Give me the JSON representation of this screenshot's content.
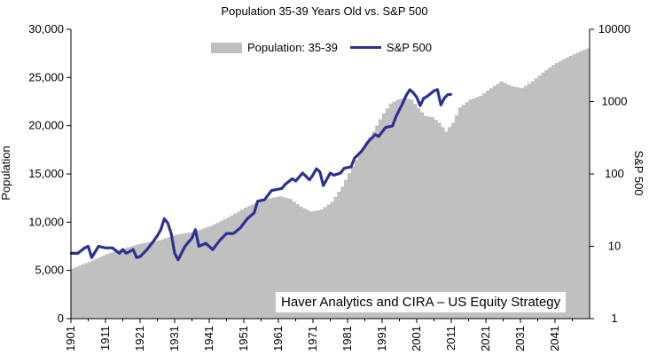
{
  "chart_data": {
    "type": "area",
    "title": "Population 35-39 Years Old vs. S&P 500",
    "ylabel": "Population",
    "y2label": "S&P 500",
    "ylim": [
      0,
      30000
    ],
    "y2lim": [
      1,
      10000
    ],
    "y2scale": "log",
    "xlim": [
      1901,
      2051
    ],
    "x_ticks": [
      1901,
      1911,
      1921,
      1931,
      1941,
      1951,
      1961,
      1971,
      1981,
      1991,
      2001,
      2011,
      2021,
      2031,
      2041
    ],
    "y_ticks": [
      "0",
      "5,000",
      "10,000",
      "15,000",
      "20,000",
      "25,000",
      "30,000"
    ],
    "y2_ticks": [
      "1",
      "10",
      "100",
      "1000",
      "10000"
    ],
    "legend_placement": "top",
    "grid": false,
    "annotation": "Haver Analytics and CIRA – US Equity Strategy",
    "colors": {
      "population": "#c0c0c0",
      "sp500": "#2e3192"
    },
    "series": [
      {
        "name": "Population: 35-39",
        "kind": "area",
        "axis": "left",
        "x": [
          1901,
          1906,
          1911,
          1916,
          1921,
          1926,
          1931,
          1936,
          1941,
          1946,
          1951,
          1956,
          1961,
          1964,
          1967,
          1970,
          1973,
          1976,
          1979,
          1982,
          1985,
          1988,
          1991,
          1993,
          1995,
          1997,
          1999,
          2001,
          2003,
          2005,
          2007,
          2009,
          2011,
          2013,
          2016,
          2019,
          2022,
          2025,
          2028,
          2031,
          2034,
          2037,
          2040,
          2043,
          2046,
          2049,
          2050
        ],
        "values": [
          5200,
          5900,
          6700,
          7300,
          7800,
          8100,
          8700,
          9000,
          9600,
          10500,
          11500,
          12300,
          12700,
          12400,
          11600,
          11100,
          11300,
          12100,
          13700,
          15800,
          17700,
          19400,
          21300,
          22300,
          22700,
          22900,
          22700,
          21800,
          21000,
          20900,
          20300,
          19400,
          20300,
          21900,
          22700,
          23100,
          23900,
          24600,
          24100,
          23900,
          24600,
          25500,
          26300,
          26900,
          27400,
          27900,
          28000
        ]
      },
      {
        "name": "S&P 500",
        "kind": "line",
        "axis": "right",
        "x": [
          1901,
          1903,
          1905,
          1906,
          1907,
          1909,
          1911,
          1913,
          1915,
          1916,
          1917,
          1919,
          1920,
          1921,
          1923,
          1925,
          1926,
          1927,
          1928,
          1929,
          1930,
          1931,
          1932,
          1934,
          1936,
          1937,
          1938,
          1940,
          1942,
          1944,
          1946,
          1948,
          1950,
          1952,
          1954,
          1955,
          1957,
          1959,
          1962,
          1963,
          1965,
          1966,
          1968,
          1970,
          1971,
          1972,
          1973,
          1974,
          1976,
          1977,
          1979,
          1980,
          1982,
          1983,
          1985,
          1987,
          1989,
          1990,
          1992,
          1994,
          1995,
          1997,
          1998,
          1999,
          2000,
          2001,
          2002,
          2003,
          2004,
          2006,
          2007,
          2008,
          2009,
          2010,
          2011
        ],
        "values": [
          8,
          8,
          9.5,
          10,
          7,
          10,
          9.5,
          9.5,
          8,
          9,
          8,
          9,
          7,
          7.2,
          9,
          12,
          14,
          17,
          24,
          21,
          15,
          8,
          6.5,
          10,
          13,
          17,
          10,
          11,
          9,
          12,
          15,
          15,
          18,
          24,
          29,
          42,
          44,
          59,
          63,
          72,
          86,
          80,
          103,
          83,
          97,
          118,
          107,
          69,
          103,
          96,
          103,
          120,
          125,
          165,
          205,
          280,
          350,
          330,
          440,
          460,
          620,
          960,
          1230,
          1460,
          1330,
          1150,
          880,
          1110,
          1180,
          1410,
          1470,
          900,
          1120,
          1250,
          1260
        ]
      }
    ]
  }
}
